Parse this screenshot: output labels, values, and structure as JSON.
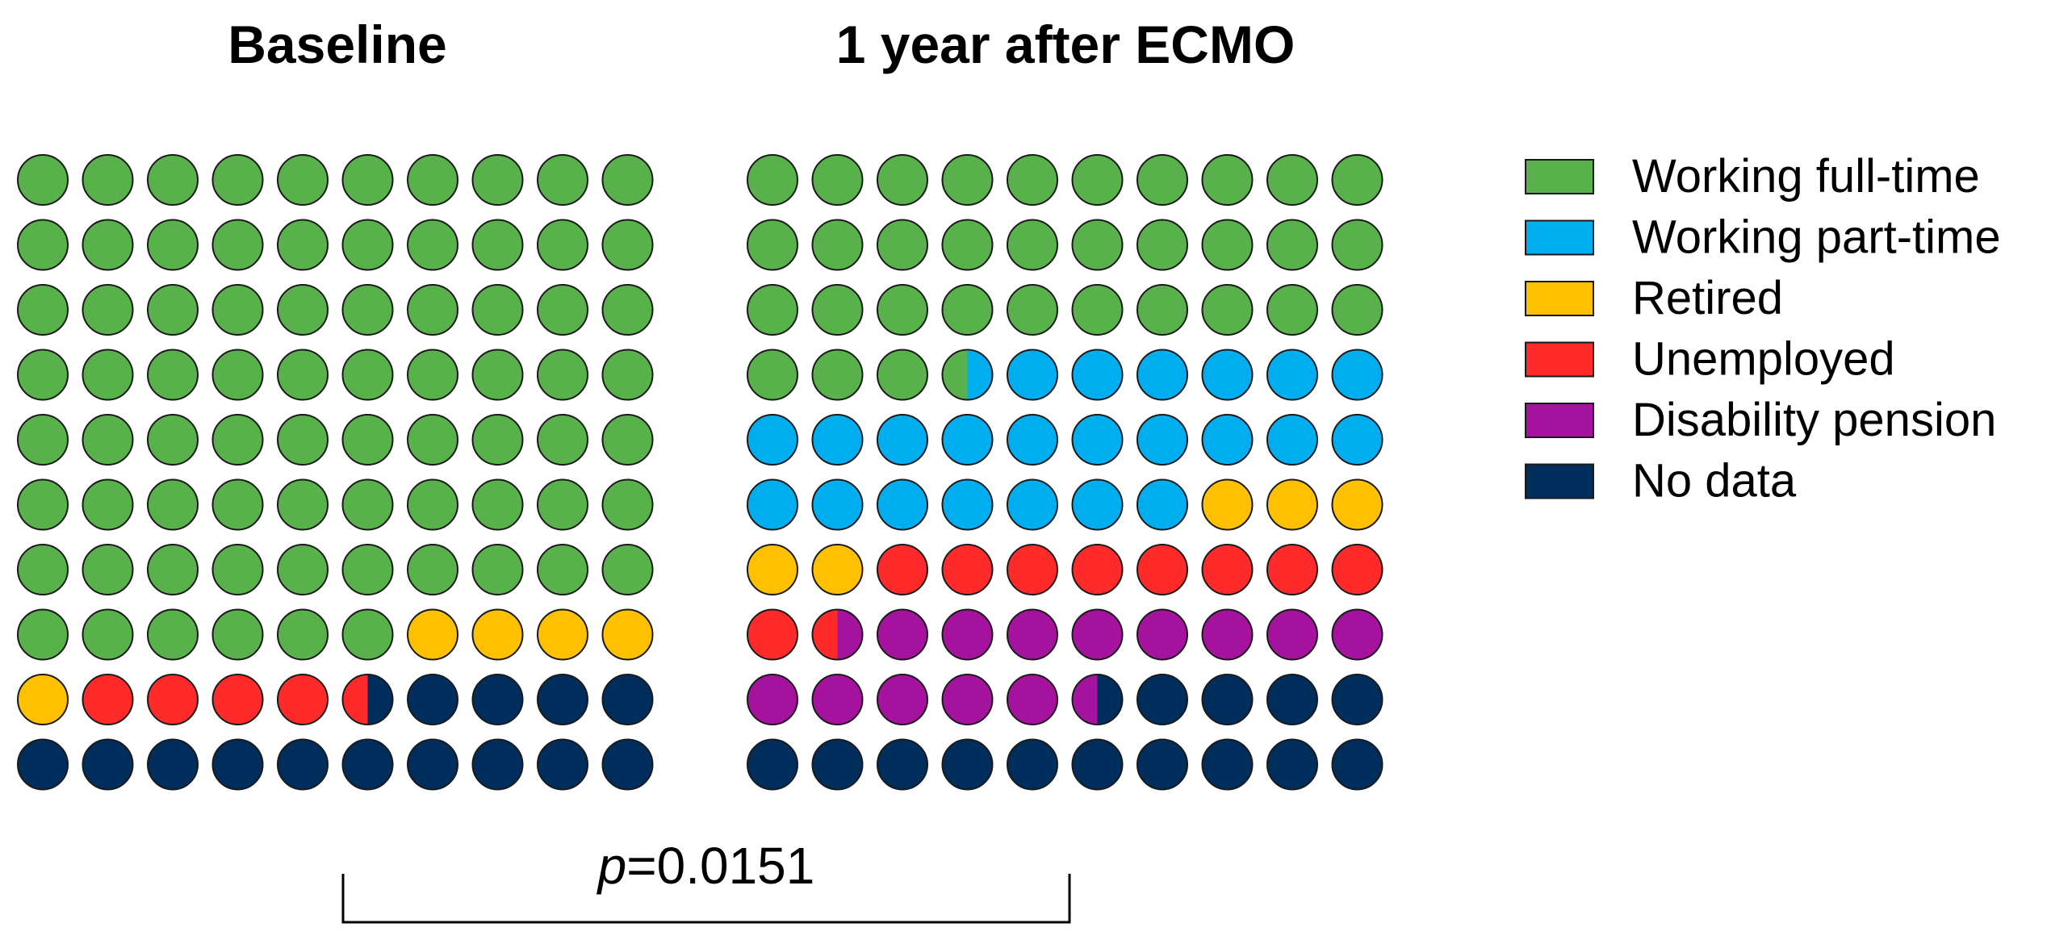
{
  "chart_data": {
    "type": "waffle",
    "grid": {
      "rows": 10,
      "cols": 10,
      "unit": "percent of patients"
    },
    "categories": [
      {
        "key": "full",
        "label": "Working full-time",
        "color": "#58B14A"
      },
      {
        "key": "part",
        "label": "Working part-time",
        "color": "#00AEEF"
      },
      {
        "key": "retired",
        "label": "Retired",
        "color": "#FFC000"
      },
      {
        "key": "unemployed",
        "label": "Unemployed",
        "color": "#FF2A2A"
      },
      {
        "key": "disability",
        "label": "Disability pension",
        "color": "#A5129E"
      },
      {
        "key": "nodata",
        "label": "No data",
        "color": "#002E5C"
      }
    ],
    "panels": [
      {
        "title": "Baseline",
        "values": {
          "full": 76,
          "part": 0,
          "retired": 5,
          "unemployed": 4.5,
          "disability": 0,
          "nodata": 14.5
        }
      },
      {
        "title": "1 year after ECMO",
        "values": {
          "full": 33.5,
          "part": 23.5,
          "retired": 5,
          "unemployed": 9.5,
          "disability": 14,
          "nodata": 14.5
        }
      }
    ],
    "legend_position": "right",
    "comparison": {
      "label_italic": "p",
      "label_rest": "=0.0151",
      "between": [
        "Baseline",
        "1 year after ECMO"
      ]
    }
  }
}
